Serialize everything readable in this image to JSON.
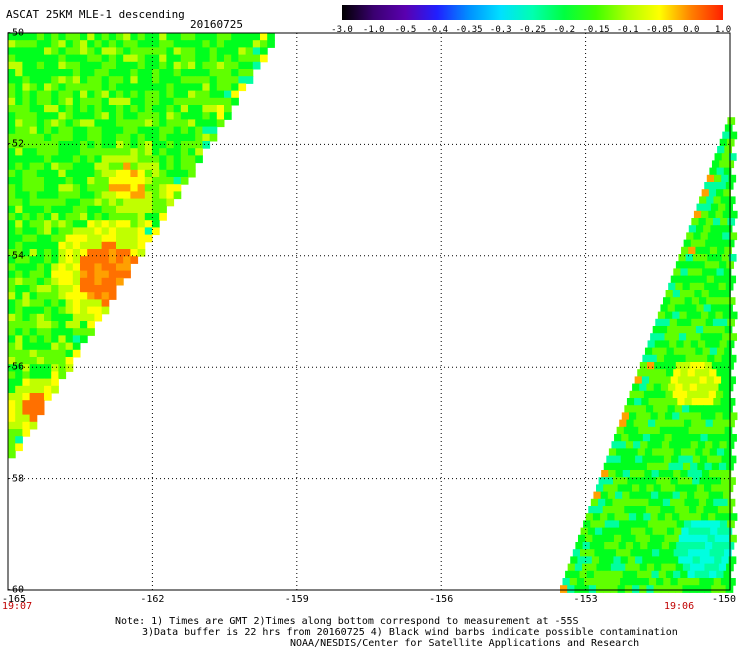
{
  "header": {
    "title": "ASCAT 25KM MLE-1 descending",
    "date": "20160725"
  },
  "colorbar": {
    "labels": [
      "-3.0",
      "-1.0",
      "-0.5",
      "-0.4",
      "-0.35",
      "-0.3",
      "-0.25",
      "-0.2",
      "-0.15",
      "-0.1",
      "-0.05",
      "0.0",
      "1.0"
    ],
    "colors": [
      "#000000",
      "#3a0070",
      "#5a00b0",
      "#2020ff",
      "#0090ff",
      "#00e0ff",
      "#00ffb0",
      "#00ff40",
      "#40ff00",
      "#b0ff00",
      "#ffff00",
      "#ff8000",
      "#ff2000"
    ]
  },
  "axes": {
    "lat_ticks": [
      "-50",
      "-52",
      "-54",
      "-56",
      "-58",
      "-60"
    ],
    "lon_ticks": [
      "-165",
      "-162",
      "-159",
      "-156",
      "-153",
      "-150"
    ],
    "times": [
      "19:07",
      "19:06"
    ]
  },
  "notes": {
    "line1": "Note: 1) Times are GMT 2)Times along bottom correspond to measurement at -55S",
    "line2": "3)Data buffer is 22 hrs from 20160725 4) Black wind barbs indicate possible contamination",
    "line3": "NOAA/NESDIS/Center for Satellite Applications and Research"
  },
  "map_colors": {
    "green": "#00ff1e",
    "light_green": "#60ff00",
    "yellow_green": "#c0ff00",
    "yellow": "#ffff00",
    "orange": "#ffa000",
    "dark_orange": "#ff7000",
    "cyan_green": "#00ffa0",
    "cyan": "#00ffe0"
  }
}
